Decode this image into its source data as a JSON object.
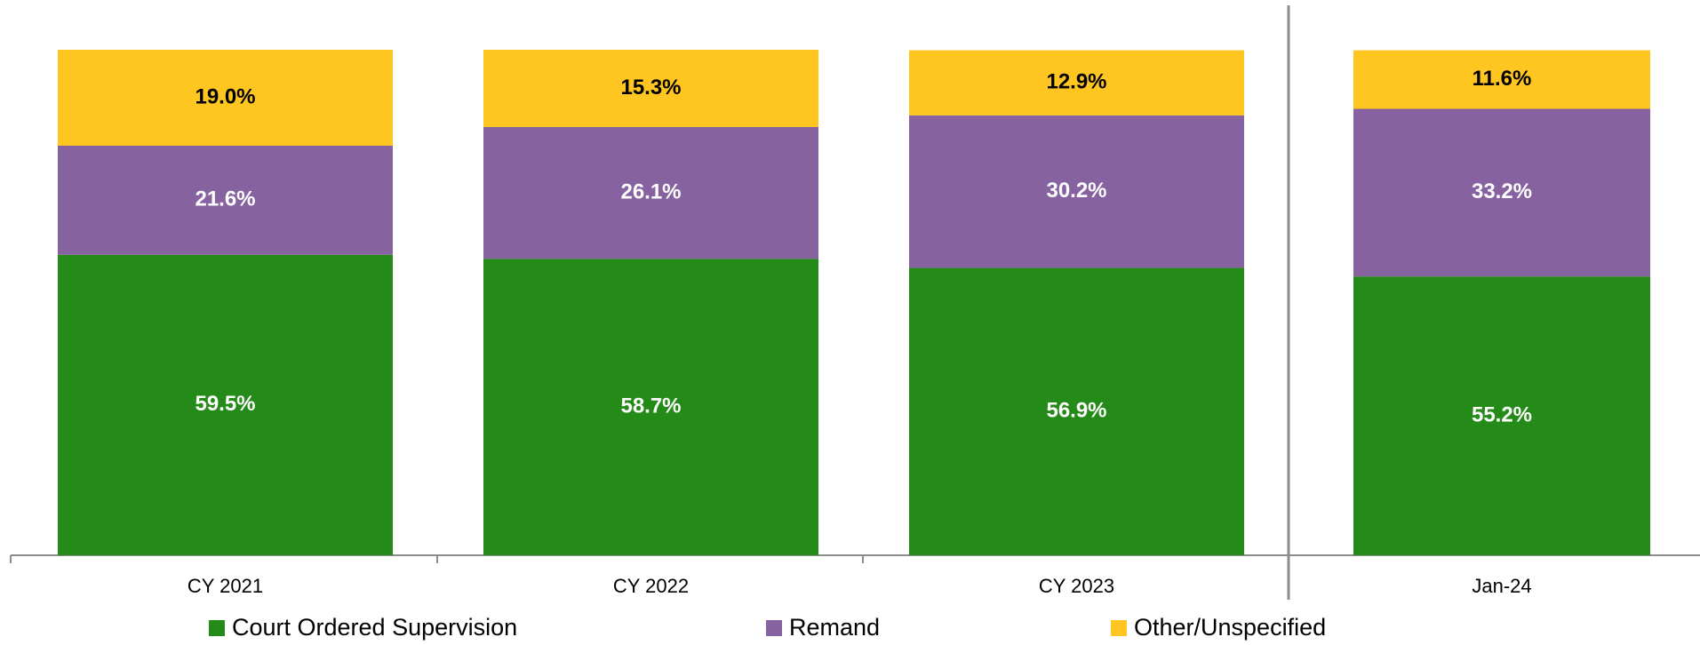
{
  "chart_data": {
    "type": "stacked_bar",
    "categories": [
      "CY 2021",
      "CY 2022",
      "CY 2023",
      "Jan-24"
    ],
    "series": [
      {
        "name": "Court Ordered Supervision",
        "color": "#248a18",
        "label_color": "#ffffff",
        "values": [
          59.5,
          58.7,
          56.9,
          55.2
        ],
        "value_labels": [
          "59.5%",
          "58.7%",
          "56.9%",
          "55.2%"
        ]
      },
      {
        "name": "Remand",
        "color": "#8762a0",
        "label_color": "#ffffff",
        "values": [
          21.6,
          26.1,
          30.2,
          33.2
        ],
        "value_labels": [
          "21.6%",
          "26.1%",
          "30.2%",
          "33.2%"
        ]
      },
      {
        "name": "Other/Unspecified",
        "color": "#ffc520",
        "label_color": "#000000",
        "values": [
          19.0,
          15.3,
          12.9,
          11.6
        ],
        "value_labels": [
          "19.0%",
          "15.3%",
          "12.9%",
          "11.6%"
        ]
      }
    ],
    "legend": "bottom"
  }
}
